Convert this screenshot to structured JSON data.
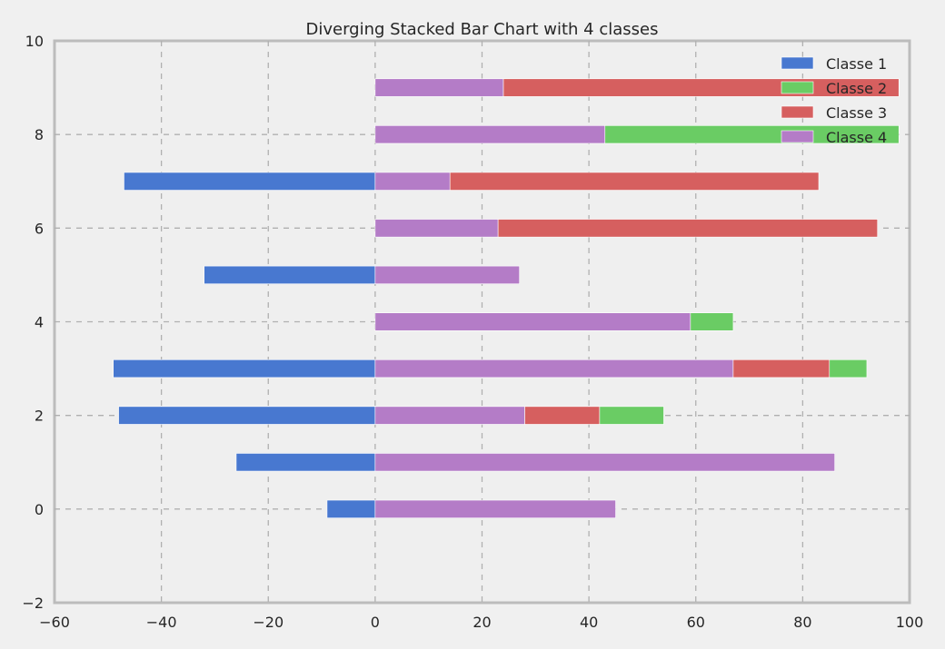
{
  "chart_data": {
    "type": "bar",
    "orientation": "horizontal",
    "stacking": "diverging",
    "title": "Diverging Stacked Bar Chart with 4 classes",
    "xlabel": "",
    "ylabel": "",
    "xlim": [
      -60,
      100
    ],
    "ylim": [
      -2,
      10
    ],
    "xticks": [
      -60,
      -40,
      -20,
      0,
      20,
      40,
      60,
      80,
      100
    ],
    "yticks": [
      -2,
      0,
      2,
      4,
      6,
      8,
      10
    ],
    "grid": true,
    "legend_position": "top-right",
    "categories": [
      0,
      1,
      2,
      3,
      4,
      5,
      6,
      7,
      8,
      9
    ],
    "series": [
      {
        "name": "Classe 1",
        "color": "#4878d0",
        "values": [
          -9,
          -26,
          -48,
          -49,
          0,
          -32,
          0,
          -47,
          0,
          0
        ]
      },
      {
        "name": "Classe 2",
        "color": "#6acc64",
        "values": [
          0,
          0,
          12,
          7,
          8,
          0,
          0,
          0,
          55,
          0
        ]
      },
      {
        "name": "Classe 3",
        "color": "#d65f5f",
        "values": [
          0,
          0,
          14,
          18,
          0,
          0,
          71,
          69,
          0,
          74
        ]
      },
      {
        "name": "Classe 4",
        "color": "#b47cc7",
        "values": [
          45,
          86,
          28,
          67,
          59,
          27,
          23,
          14,
          43,
          24
        ]
      }
    ],
    "stack_order_positive": [
      "Classe 4",
      "Classe 3",
      "Classe 2"
    ]
  }
}
